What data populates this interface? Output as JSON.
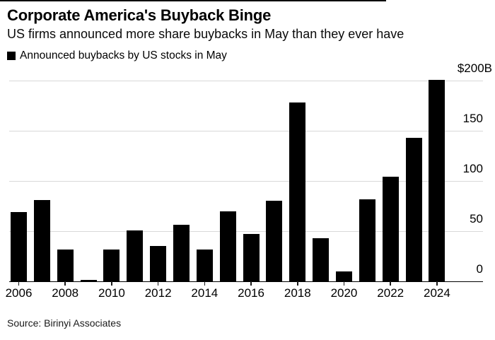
{
  "header": {
    "title": "Corporate America's Buyback Binge",
    "subtitle": "US firms announced more share buybacks in May than they ever have"
  },
  "legend": {
    "label": "Announced buybacks by US stocks in May",
    "swatch_color": "#000000"
  },
  "source": {
    "text": "Source: Birinyi Associates"
  },
  "colors": {
    "bar": "#000000",
    "gridline": "#d8d8d8",
    "axis": "#000000",
    "text": "#000000",
    "background": "#ffffff"
  },
  "chart_data": {
    "type": "bar",
    "title": "Corporate America's Buyback Binge",
    "subtitle": "US firms announced more share buybacks in May than they ever have",
    "series_name": "Announced buybacks by US stocks in May",
    "unit": "$B",
    "categories": [
      2006,
      2007,
      2008,
      2009,
      2010,
      2011,
      2012,
      2013,
      2014,
      2015,
      2016,
      2017,
      2018,
      2019,
      2020,
      2021,
      2022,
      2023,
      2024
    ],
    "values": [
      69,
      81,
      32,
      1.5,
      32,
      51,
      35,
      56,
      32,
      70,
      47,
      80,
      178,
      43,
      10,
      82,
      104,
      143,
      201
    ],
    "ylim": [
      0,
      200
    ],
    "yticks": [
      {
        "value": 200,
        "label": "$200B"
      },
      {
        "value": 150,
        "label": "150"
      },
      {
        "value": 100,
        "label": "100"
      },
      {
        "value": 50,
        "label": "50"
      },
      {
        "value": 0,
        "label": "0"
      }
    ],
    "xtick_labels": [
      "2006",
      "2008",
      "2010",
      "2012",
      "2014",
      "2016",
      "2018",
      "2020",
      "2022",
      "2024"
    ],
    "grid": "horizontal",
    "legend_position": "top-left",
    "y_axis_side": "right"
  }
}
